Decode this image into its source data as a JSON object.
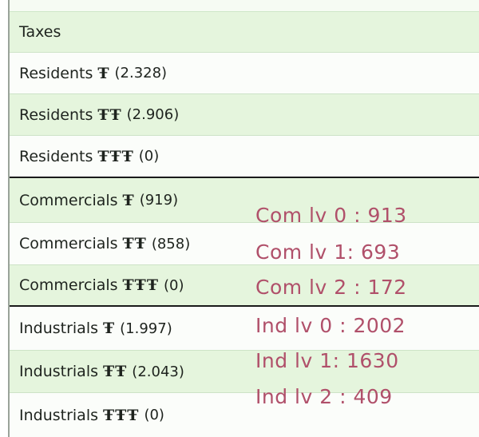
{
  "taxes": {
    "header": "Taxes"
  },
  "rows": [
    {
      "name": "Residents",
      "level": "Ŧ",
      "count": "(2.328)"
    },
    {
      "name": "Residents",
      "level": "ŦŦ",
      "count": "(2.906)"
    },
    {
      "name": "Residents",
      "level": "ŦŦŦ",
      "count": "(0)"
    },
    {
      "name": "Commercials",
      "level": "Ŧ",
      "count": "(919)"
    },
    {
      "name": "Commercials",
      "level": "ŦŦ",
      "count": "(858)"
    },
    {
      "name": "Commercials",
      "level": "ŦŦŦ",
      "count": "(0)"
    },
    {
      "name": "Industrials",
      "level": "Ŧ",
      "count": "(1.997)"
    },
    {
      "name": "Industrials",
      "level": "ŦŦ",
      "count": "(2.043)"
    },
    {
      "name": "Industrials",
      "level": "ŦŦŦ",
      "count": "(0)"
    }
  ],
  "annotations": [
    "Com lv 0 : 913",
    "Com lv 1: 693",
    "Com lv 2 : 172",
    "Ind lv 0 : 2002",
    "Ind lv 1: 1630",
    "Ind lv 2 : 409"
  ],
  "colors": {
    "row_green": "#e5f5dd",
    "row_white": "#fbfdfa",
    "annotation": "#b0506a",
    "text": "#1e231e"
  }
}
